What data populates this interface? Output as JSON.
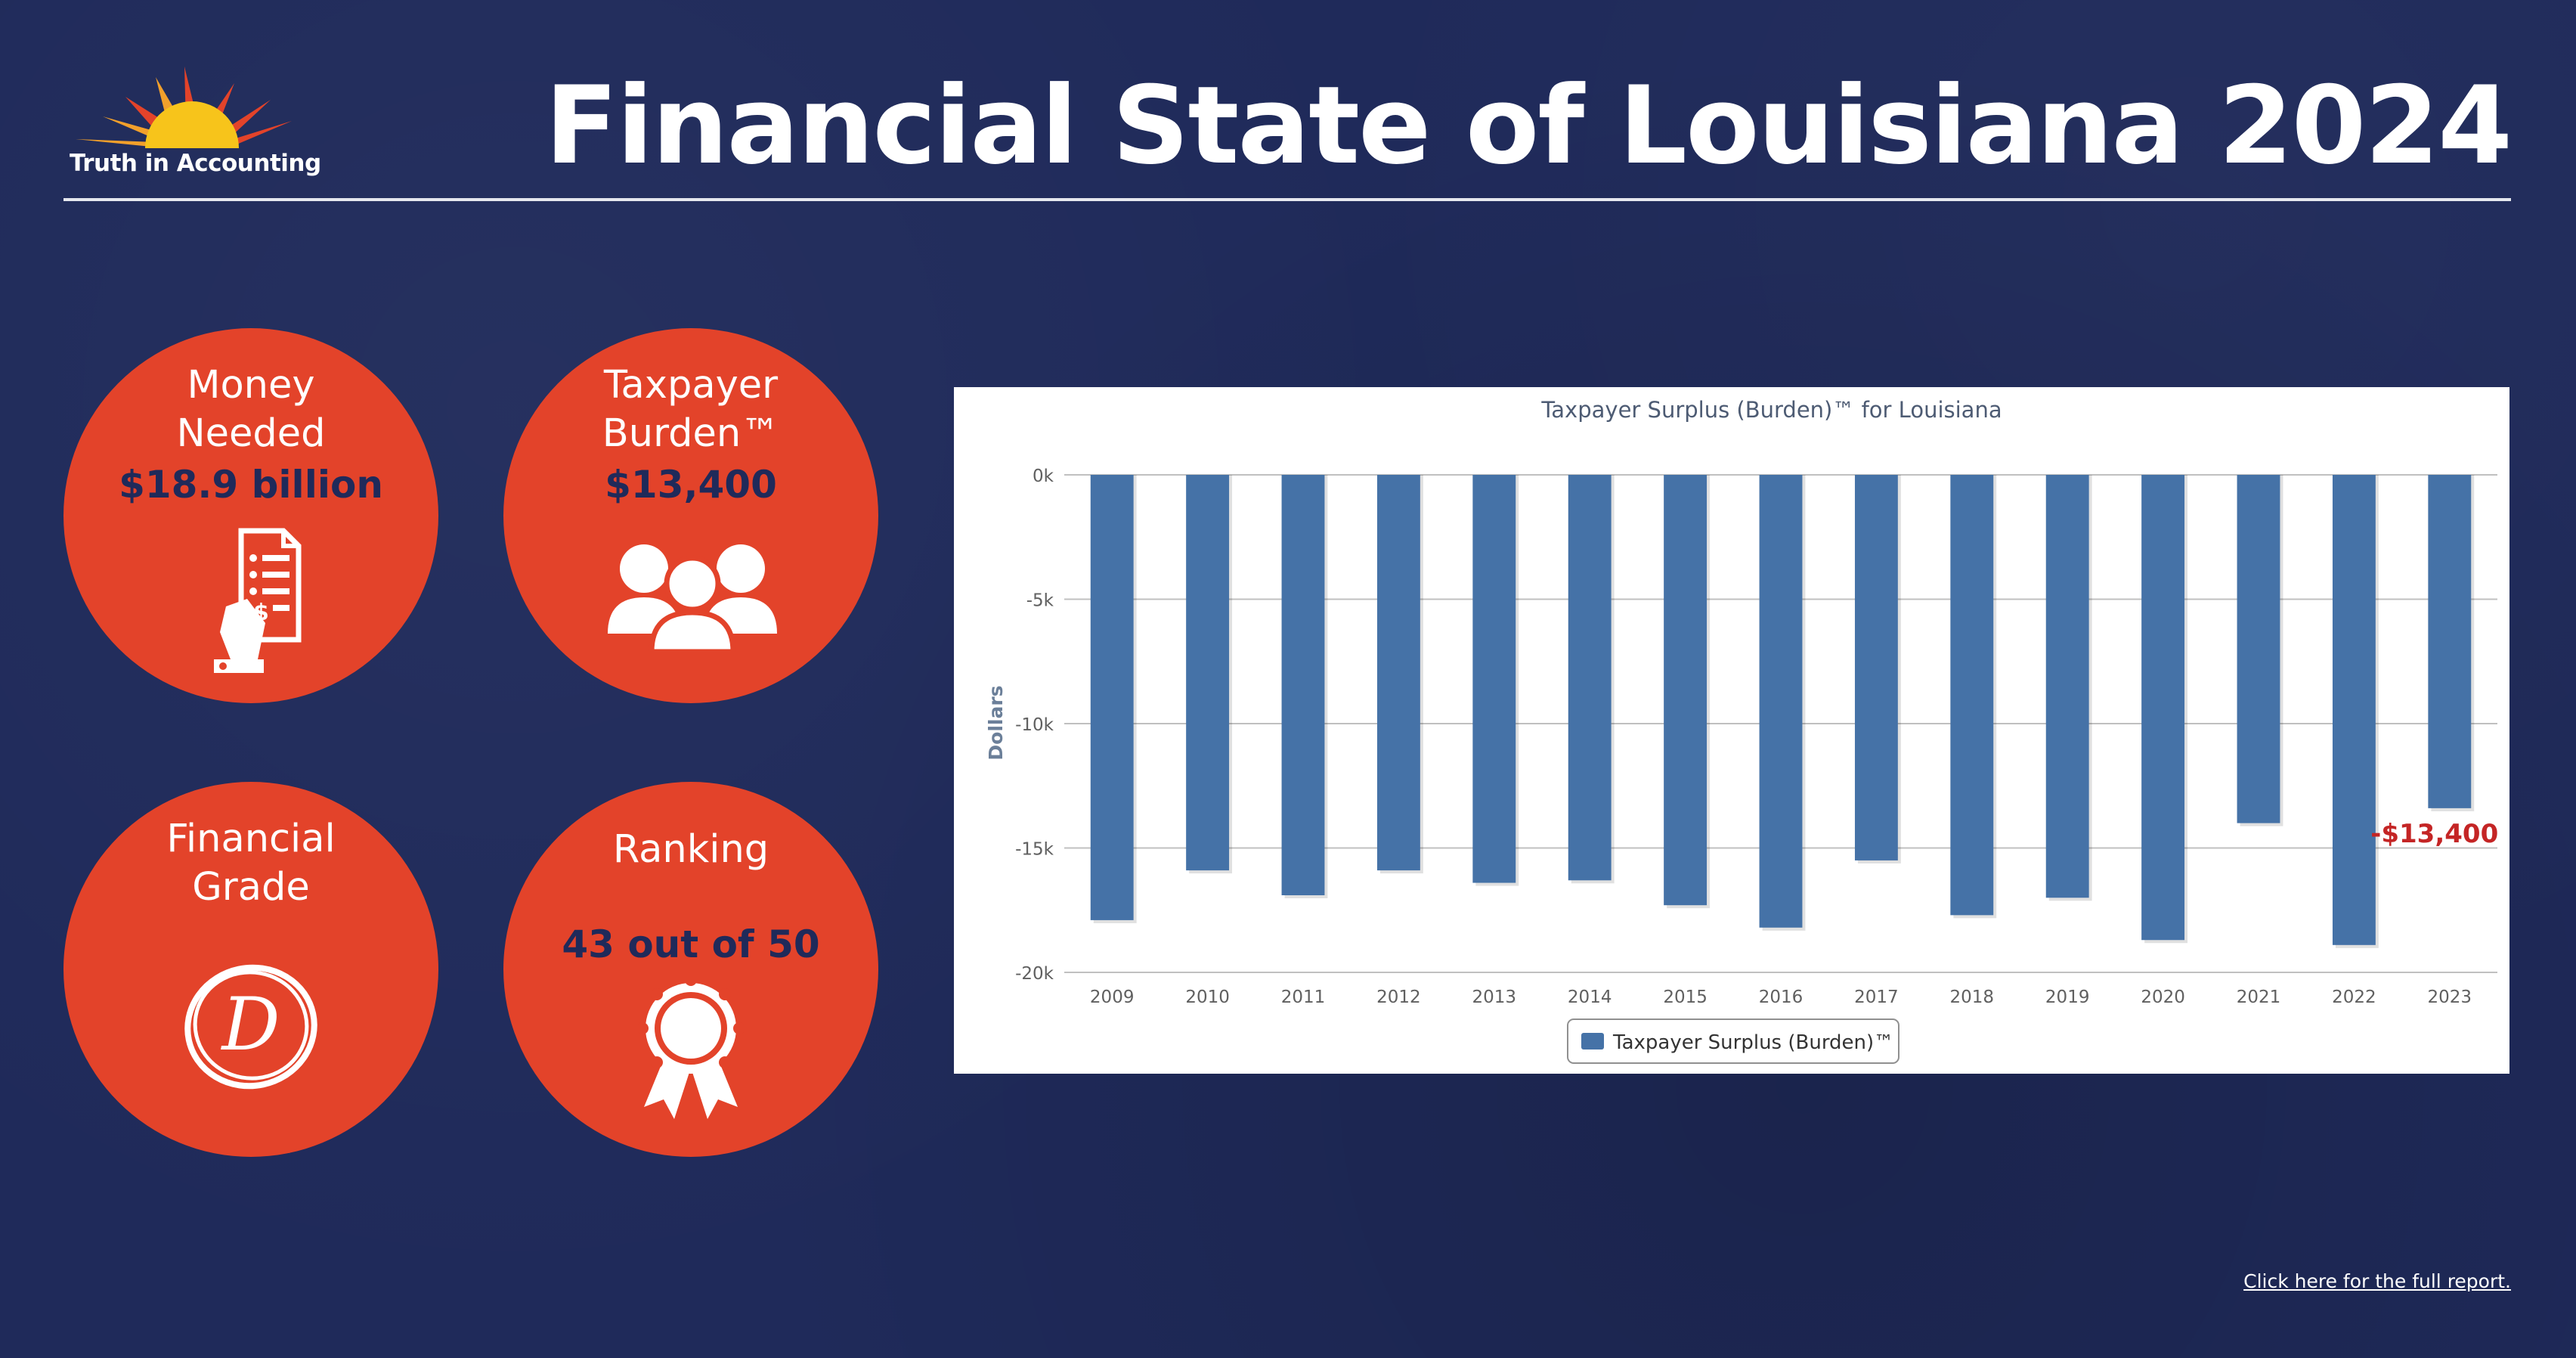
{
  "header": {
    "logo_text": "Truth in Accounting",
    "title": "Financial State of Louisiana 2024"
  },
  "cards": {
    "money_needed": {
      "label_line1": "Money",
      "label_line2": "Needed",
      "value": "$18.9 billion",
      "icon": "receipt-hand-icon"
    },
    "taxpayer_burden": {
      "label_line1": "Taxpayer",
      "label_line2": "Burden™",
      "value": "$13,400",
      "icon": "people-group-icon"
    },
    "financial_grade": {
      "label_line1": "Financial",
      "label_line2": "Grade",
      "grade": "D",
      "icon": "circled-grade-icon"
    },
    "ranking": {
      "label": "Ranking",
      "value": "43 out of 50",
      "icon": "award-ribbon-icon"
    }
  },
  "colors": {
    "accent": "#e3432a",
    "background": "#1f2a5a",
    "bar": "#4572a7",
    "callout": "#c42525"
  },
  "chart_data": {
    "type": "bar",
    "title": "Taxpayer Surplus (Burden)™ for Louisiana",
    "ylabel": "Dollars",
    "xlabel": "",
    "categories": [
      "2009",
      "2010",
      "2011",
      "2012",
      "2013",
      "2014",
      "2015",
      "2016",
      "2017",
      "2018",
      "2019",
      "2020",
      "2021",
      "2022",
      "2023"
    ],
    "series": [
      {
        "name": "Taxpayer Surplus (Burden)™",
        "values": [
          -17900,
          -15900,
          -16900,
          -15900,
          -16400,
          -16300,
          -17300,
          -18200,
          -15500,
          -17700,
          -17000,
          -18700,
          -14000,
          -18900,
          -13400
        ]
      }
    ],
    "ylim": [
      -20000,
      0
    ],
    "yticks": [
      0,
      -5000,
      -10000,
      -15000,
      -20000
    ],
    "ytick_labels": [
      "0k",
      "-5k",
      "-10k",
      "-15k",
      "-20k"
    ],
    "grid": true,
    "legend": "bottom-center",
    "annotation": {
      "category": "2023",
      "text": "-$13,400"
    }
  },
  "footer": {
    "report_link": "Click here for the full report."
  }
}
